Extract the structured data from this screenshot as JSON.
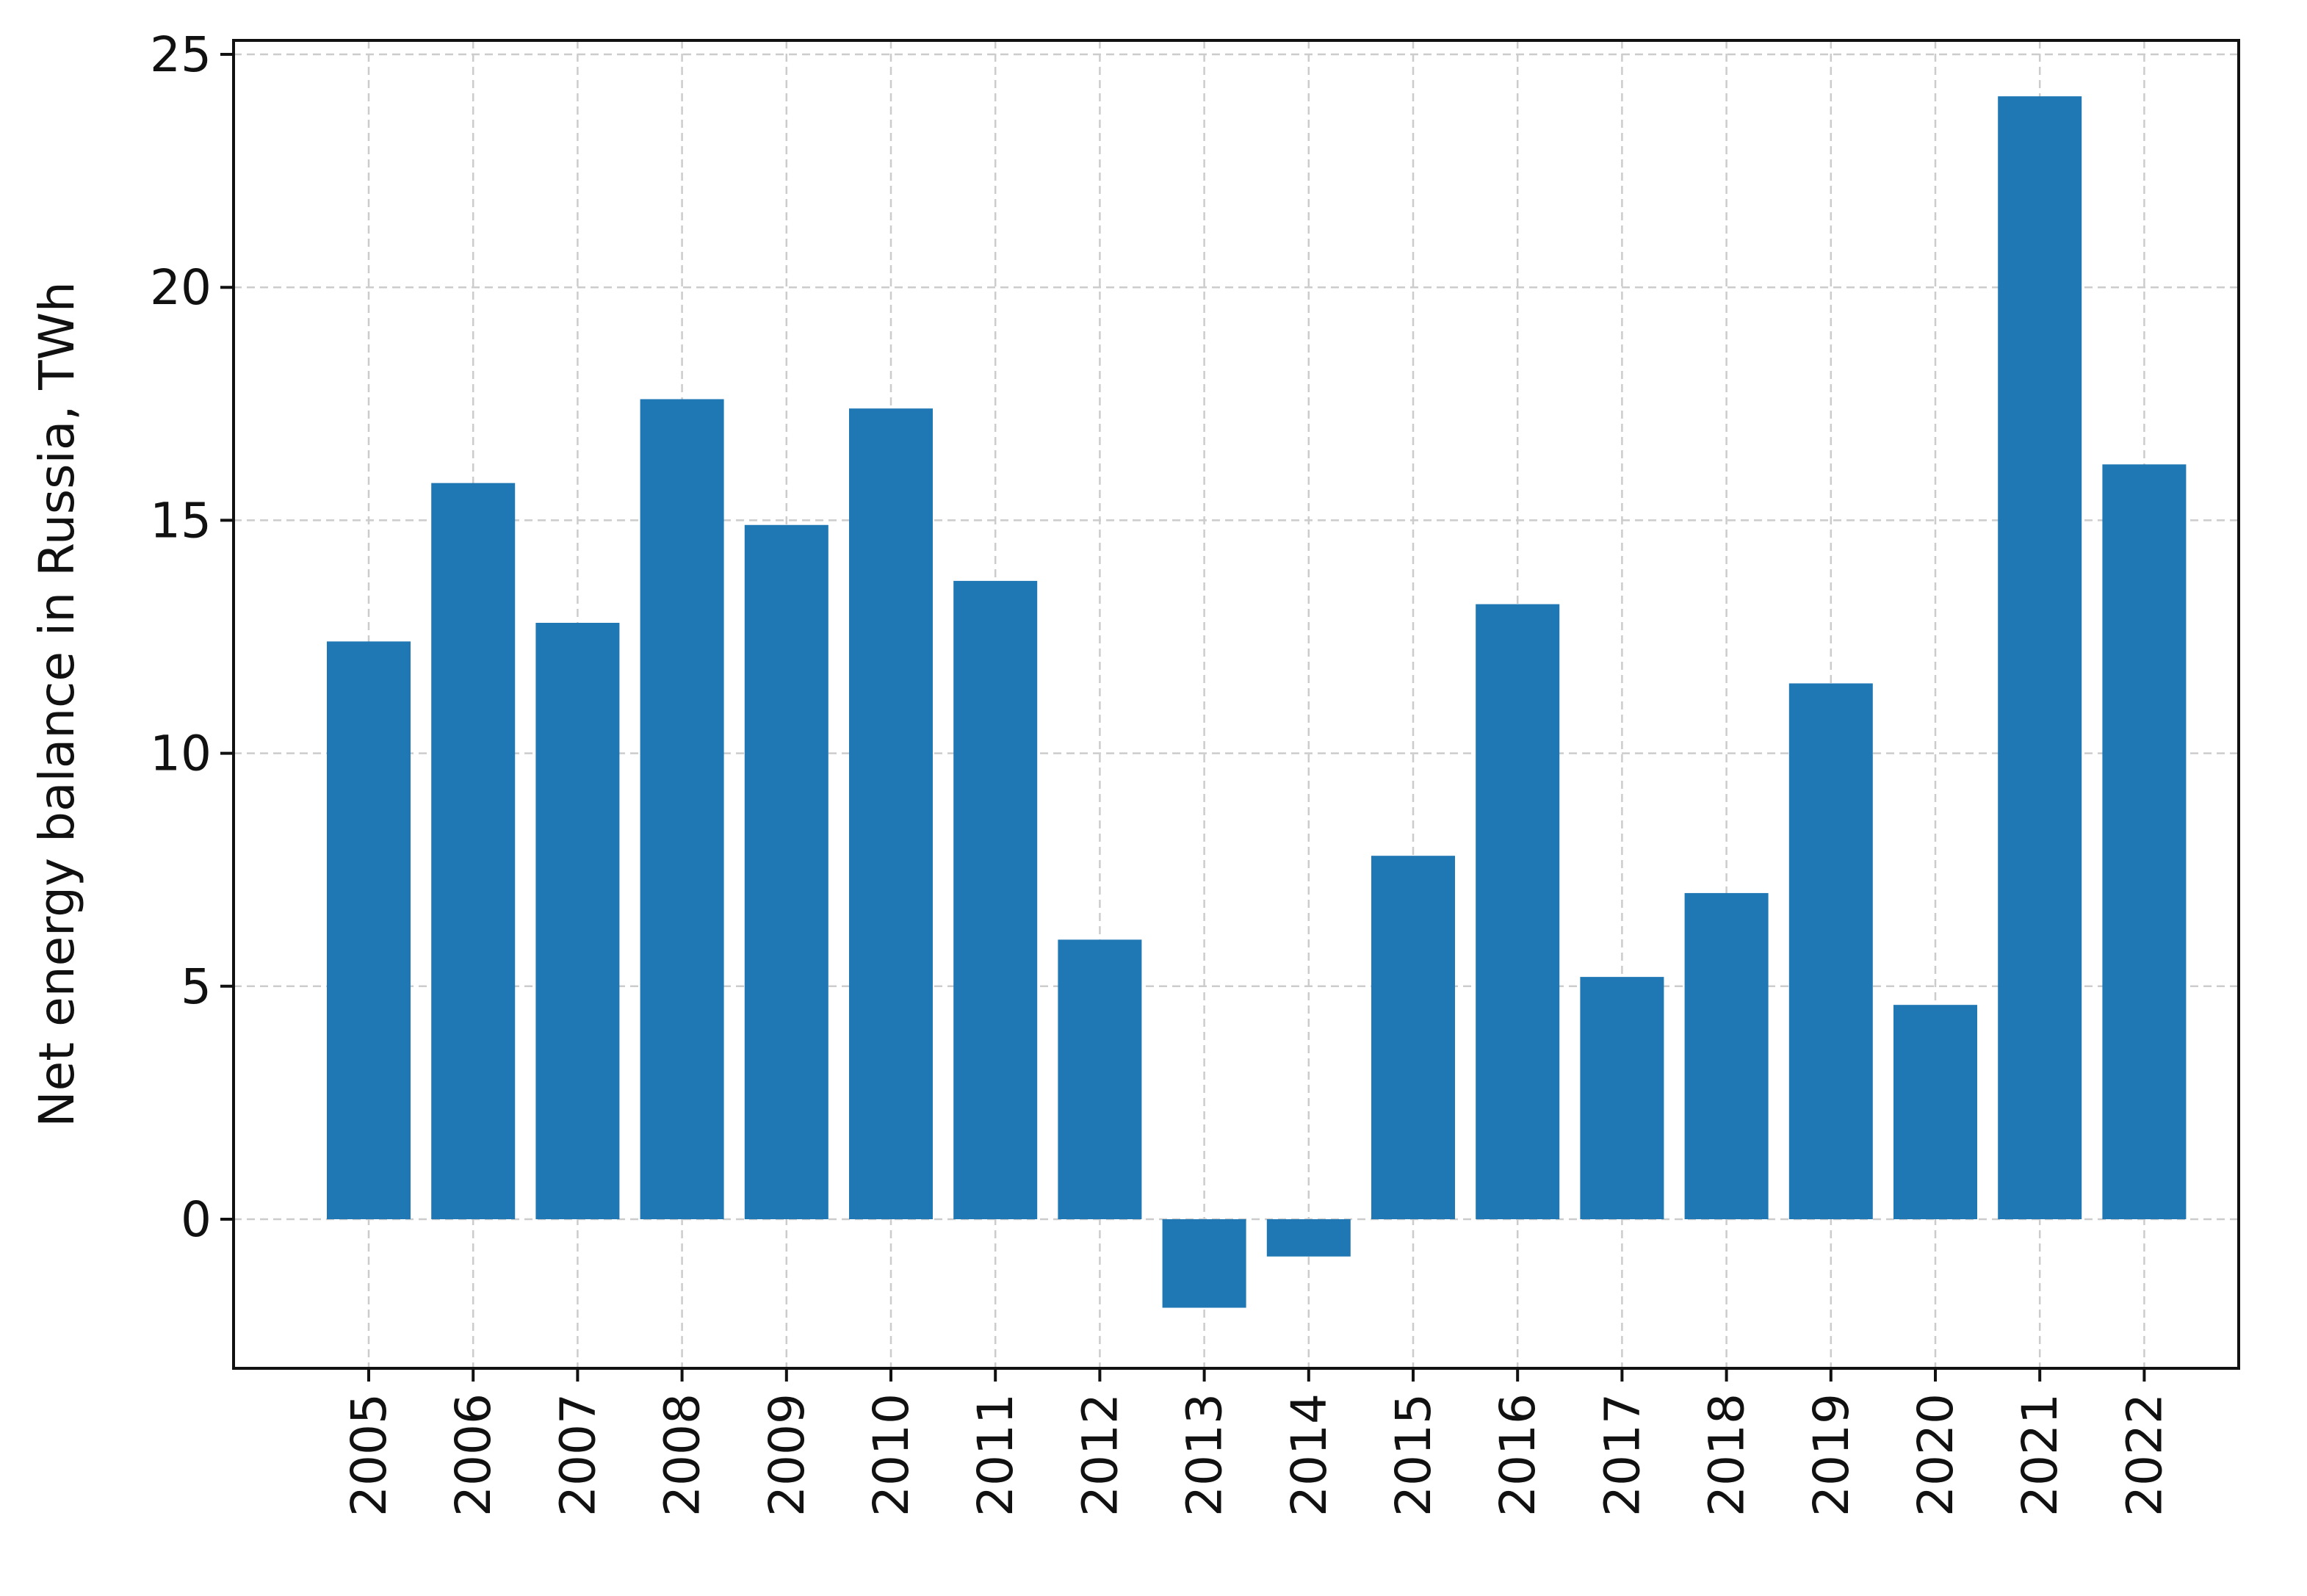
{
  "chart_data": {
    "type": "bar",
    "title": "",
    "xlabel": "",
    "ylabel": "Net energy balance in Russia, TWh",
    "categories": [
      "2005",
      "2006",
      "2007",
      "2008",
      "2009",
      "2010",
      "2011",
      "2012",
      "2013",
      "2014",
      "2015",
      "2016",
      "2017",
      "2018",
      "2019",
      "2020",
      "2021",
      "2022"
    ],
    "values": [
      12.4,
      15.8,
      12.8,
      17.6,
      14.9,
      17.4,
      13.7,
      6.0,
      -1.9,
      -0.8,
      7.8,
      13.2,
      5.2,
      7.0,
      11.5,
      4.6,
      24.1,
      16.2
    ],
    "yticks": [
      "0",
      "5",
      "10",
      "15",
      "20",
      "25"
    ],
    "ylim": [
      -3.2,
      25.3
    ],
    "grid": true,
    "bar_color": "#1f77b4",
    "axis_color": "#111111",
    "grid_color": "#cccccc"
  }
}
